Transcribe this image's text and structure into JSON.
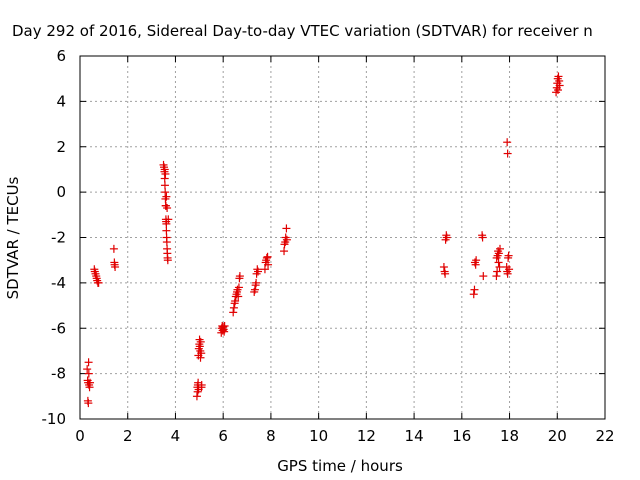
{
  "chart_data": {
    "type": "scatter",
    "title": "Day 292 of 2016, Sidereal Day-to-day VTEC variation (SDTVAR) for receiver n",
    "xlabel": "GPS time / hours",
    "ylabel": "SDTVAR / TECUs",
    "xlim": [
      0,
      22
    ],
    "ylim": [
      -10,
      6
    ],
    "xticks": [
      0,
      2,
      4,
      6,
      8,
      10,
      12,
      14,
      16,
      18,
      20,
      22
    ],
    "yticks": [
      -10,
      -8,
      -6,
      -4,
      -2,
      0,
      2,
      4,
      6
    ],
    "xtick_labels": [
      "0",
      "2",
      "4",
      "6",
      "8",
      "10",
      "12",
      "14",
      "16",
      "18",
      "20",
      "22"
    ],
    "ytick_labels": [
      "-10",
      "-8",
      "-6",
      "-4",
      "-2",
      "0",
      "2",
      "4",
      "6"
    ],
    "grid": true,
    "marker": "+",
    "color": "#e00000",
    "series": [
      {
        "name": "SDTVAR",
        "x": [
          0.3,
          0.32,
          0.34,
          0.33,
          0.36,
          0.38,
          0.37,
          0.4,
          0.42,
          0.35,
          0.6,
          0.62,
          0.65,
          0.68,
          0.7,
          0.72,
          0.75,
          0.78,
          1.42,
          1.44,
          1.45,
          1.47,
          3.5,
          3.52,
          3.54,
          3.55,
          3.56,
          3.57,
          3.58,
          3.59,
          3.6,
          3.6,
          3.61,
          3.62,
          3.62,
          3.63,
          3.64,
          3.65,
          3.66,
          3.67,
          3.68,
          3.7,
          3.55,
          3.58,
          3.62,
          3.65,
          4.9,
          4.92,
          4.94,
          4.95,
          4.96,
          4.98,
          5.0,
          5.02,
          5.04,
          5.06,
          5.08,
          5.1,
          4.93,
          4.97,
          5.01,
          5.05,
          5.09,
          5.92,
          5.94,
          5.96,
          5.98,
          6.0,
          6.02,
          6.04,
          6.06,
          6.42,
          6.45,
          6.48,
          6.5,
          6.53,
          6.56,
          6.58,
          6.6,
          6.63,
          6.66,
          6.68,
          6.7,
          7.3,
          7.33,
          7.36,
          7.38,
          7.4,
          7.43,
          7.46,
          7.75,
          7.78,
          7.8,
          7.83,
          7.86,
          7.88,
          8.55,
          8.57,
          8.6,
          8.62,
          8.65,
          8.67,
          15.25,
          15.28,
          15.3,
          15.32,
          15.35,
          15.37,
          16.5,
          16.53,
          16.55,
          16.58,
          16.6,
          16.85,
          16.87,
          16.9,
          17.45,
          17.48,
          17.5,
          17.52,
          17.55,
          17.58,
          17.6,
          17.46,
          17.54,
          17.88,
          17.9,
          17.92,
          17.94,
          17.96,
          17.98,
          17.9,
          17.92,
          19.95,
          19.98,
          20.0,
          20.02,
          20.05,
          20.08,
          20.1,
          20.03
        ],
        "y": [
          -7.8,
          -8.3,
          -8.4,
          -9.2,
          -7.5,
          -8.5,
          -8.0,
          -8.6,
          -8.4,
          -9.3,
          -3.4,
          -3.5,
          -3.6,
          -3.7,
          -3.8,
          -3.9,
          -4.0,
          -4.0,
          -2.5,
          -3.1,
          -3.2,
          -3.3,
          1.2,
          1.1,
          0.9,
          0.6,
          0.3,
          0.0,
          -0.3,
          -0.6,
          -0.6,
          -1.2,
          -1.3,
          -1.4,
          -1.7,
          -2.0,
          -2.2,
          -2.5,
          -2.7,
          -2.9,
          -3.0,
          -1.2,
          1.0,
          0.8,
          -0.2,
          -0.7,
          -9.0,
          -8.6,
          -8.5,
          -8.4,
          -7.2,
          -6.9,
          -6.7,
          -6.8,
          -7.0,
          -6.6,
          -7.1,
          -8.5,
          -8.8,
          -8.7,
          -6.5,
          -7.3,
          -8.6,
          -6.2,
          -6.0,
          -5.9,
          -6.1,
          -5.95,
          -6.05,
          -6.15,
          -5.9,
          -5.3,
          -5.1,
          -4.9,
          -4.8,
          -4.6,
          -4.5,
          -4.4,
          -4.3,
          -4.6,
          -4.2,
          -3.8,
          -3.7,
          -4.4,
          -4.3,
          -4.1,
          -4.0,
          -3.6,
          -3.4,
          -3.5,
          -3.4,
          -3.1,
          -3.0,
          -2.9,
          -2.85,
          -3.2,
          -2.6,
          -2.3,
          -2.2,
          -2.0,
          -1.6,
          -2.1,
          -3.3,
          -3.5,
          -3.6,
          -2.1,
          -1.9,
          -2.0,
          -4.5,
          -4.3,
          -3.1,
          -3.2,
          -3.0,
          -1.9,
          -2.0,
          -3.7,
          -3.7,
          -3.5,
          -2.8,
          -2.6,
          -2.7,
          -3.3,
          -2.5,
          -2.9,
          -3.1,
          -3.3,
          -3.5,
          -3.6,
          -2.9,
          -2.8,
          -3.4,
          2.2,
          1.7,
          4.4,
          4.6,
          4.8,
          5.0,
          5.1,
          4.9,
          4.7,
          4.5
        ]
      }
    ]
  }
}
